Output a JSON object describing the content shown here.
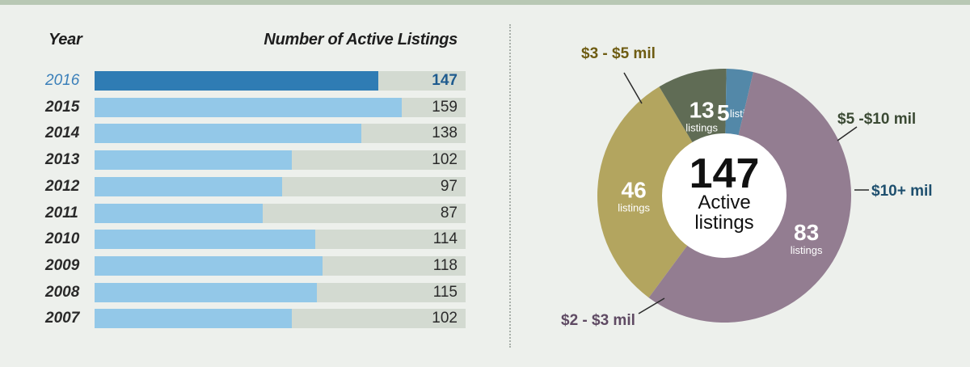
{
  "chart_data": [
    {
      "type": "bar",
      "orientation": "horizontal",
      "header_left": "Year",
      "header_right": "Number of Active Listings",
      "categories": [
        "2016",
        "2015",
        "2014",
        "2013",
        "2012",
        "2011",
        "2010",
        "2009",
        "2008",
        "2007"
      ],
      "values": [
        147,
        159,
        138,
        102,
        97,
        87,
        114,
        118,
        115,
        102
      ],
      "highlight": "2016",
      "xlim": [
        0,
        192
      ],
      "colors": {
        "highlight": "#2f7cb4",
        "bar": "#93c8e8",
        "track": "#d3dad1"
      }
    },
    {
      "type": "pie",
      "donut": true,
      "center_total": "147",
      "center_line1": "Active",
      "center_line2": "listings",
      "slices": [
        {
          "label": "$3 - $5 mil",
          "value": 46,
          "sub": "listings",
          "color": "#b3a55f",
          "label_color": "#6e5c12"
        },
        {
          "label": "$5 -$10 mil",
          "value": 13,
          "sub": "listings",
          "color": "#606c55",
          "label_color": "#3b4a34"
        },
        {
          "label": "$10+ mil",
          "value": 5,
          "sub": "listings",
          "color": "#5388a8",
          "label_color": "#1e4f6e"
        },
        {
          "label": "$2 - $3 mil",
          "value": 83,
          "sub": "listings",
          "color": "#937d91",
          "label_color": "#5f4a63"
        }
      ]
    }
  ]
}
